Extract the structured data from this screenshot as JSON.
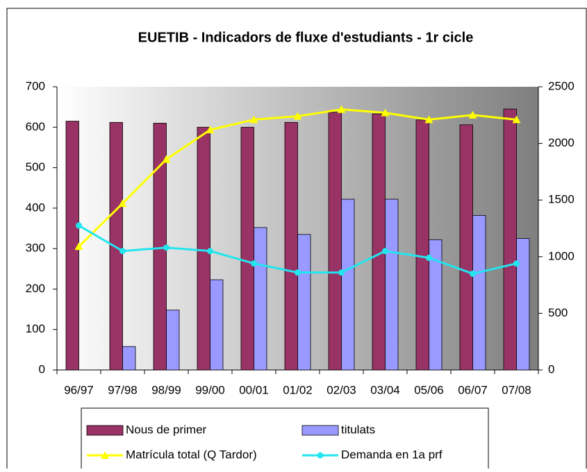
{
  "chart_data": {
    "type": "bar-line",
    "title": "EUETIB - Indicadors de fluxe d'estudiants - 1r cicle",
    "categories": [
      "96/97",
      "97/98",
      "98/99",
      "99/00",
      "00/01",
      "01/02",
      "02/03",
      "03/04",
      "05/06",
      "06/07",
      "07/08"
    ],
    "series": [
      {
        "name": "Nous de primer",
        "type": "bar",
        "color": "#993366",
        "values": [
          615,
          612,
          610,
          600,
          600,
          612,
          637,
          633,
          618,
          606,
          645
        ]
      },
      {
        "name": "titulats",
        "type": "bar",
        "color": "#9999ff",
        "values": [
          null,
          58,
          148,
          223,
          352,
          335,
          422,
          422,
          322,
          382,
          325
        ]
      },
      {
        "name": "Matrícula total (Q Tardor)",
        "type": "line",
        "axis": "y2",
        "marker": "triangle",
        "color": "#ffff00",
        "values": [
          1090,
          1470,
          1860,
          2120,
          2210,
          2240,
          2300,
          2270,
          2210,
          2250,
          2210
        ]
      },
      {
        "name": "Demanda en 1a prf",
        "type": "line",
        "axis": "y2",
        "marker": "circle",
        "color": "#22e5ee",
        "values": [
          1275,
          1050,
          1080,
          1050,
          940,
          860,
          860,
          1050,
          990,
          850,
          940
        ]
      }
    ],
    "ylim": [
      0,
      700
    ],
    "yticks": [
      0,
      100,
      200,
      300,
      400,
      500,
      600,
      700
    ],
    "y2lim": [
      0,
      2500
    ],
    "y2ticks": [
      0,
      500,
      1000,
      1500,
      2000,
      2500
    ],
    "legend": "bottom"
  }
}
